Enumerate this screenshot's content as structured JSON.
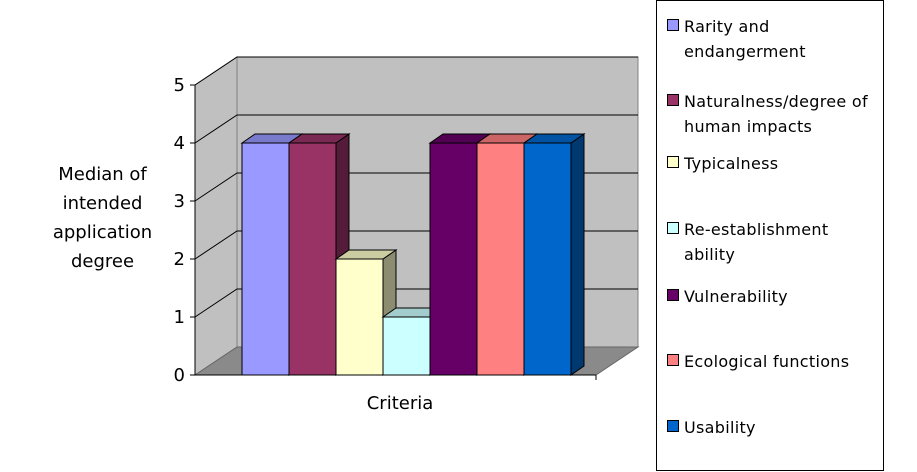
{
  "chart_data": {
    "type": "bar",
    "categories": [
      "Rarity and endangerment",
      "Naturalness/degree of human impacts",
      "Typicalness",
      "Re-establishment ability",
      "Vulnerability",
      "Ecological functions",
      "Usability"
    ],
    "values": [
      4,
      4,
      2,
      1,
      4,
      4,
      4
    ],
    "colors": [
      "#9999ff",
      "#993366",
      "#ffffcc",
      "#ccffff",
      "#660066",
      "#ff8080",
      "#0066cc"
    ],
    "xlabel": "Criteria",
    "ylabel": "Median of intended application degree",
    "ylim": [
      0,
      5
    ],
    "yticks": [
      "0",
      "1",
      "2",
      "3",
      "4",
      "5"
    ],
    "grid": true,
    "legend_position": "right",
    "style": "3d-clustered-column"
  },
  "legend": {
    "items": [
      "Rarity and endangerment",
      "Naturalness/degree of human impacts",
      "Typicalness",
      "Re-establishment ability",
      "Vulnerability",
      "Ecological functions",
      "Usability"
    ]
  }
}
